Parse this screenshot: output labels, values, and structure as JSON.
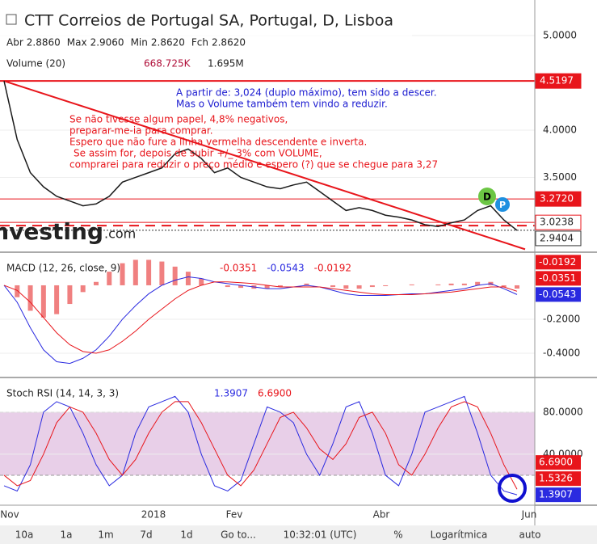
{
  "header": {
    "title": "CTT Correios de Portugal SA, Portugal, D, Lisboa",
    "ohlc": [
      "Abr",
      "2.8860",
      "Max",
      "2.9060",
      "Min",
      "2.8620",
      "Fch",
      "2.8620"
    ],
    "volume_label": "Volume (20)",
    "volume_values": [
      "668.725K",
      "1.695M"
    ]
  },
  "annotations": {
    "blue": [
      "A partir de: 3,024 (duplo máximo), tem sido a descer.",
      "Mas o Volume também tem vindo a reduzir."
    ],
    "red": [
      "Se não tivesse algum papel, 4,8% negativos,",
      "preparar-me-ia para comprar.",
      "Espero que não fure a linha vermelha descendente e inverta.",
      "Se assim for, depois de subir +/_ 3% com VOLUME,",
      "comprarei para reduzir o preço médio e espero (?) que se chegue para 3,27"
    ],
    "watermark": "Investing",
    "watermark_suffix": ".com",
    "badge_d": "D",
    "badge_p": "P"
  },
  "x_axis": [
    "Nov",
    "2018",
    "Fev",
    "Abr",
    "Jun"
  ],
  "toolbar": [
    "10a",
    "1a",
    "1m",
    "7d",
    "1d",
    "Go to...",
    "10:32:01 (UTC)",
    "%",
    "Logarítmica",
    "auto"
  ],
  "chart_data": [
    {
      "type": "line",
      "color": "#1a1a1a",
      "ylim": [
        2.709,
        5.376
      ],
      "yticks": [
        {
          "value": 5,
          "label": "5.0000"
        },
        {
          "value": 4,
          "label": "4.0000"
        },
        {
          "value": 3.5,
          "label": "3.5000"
        }
      ],
      "values": [
        4.52,
        3.9,
        3.55,
        3.4,
        3.3,
        3.25,
        3.2,
        3.22,
        3.3,
        3.45,
        3.5,
        3.55,
        3.6,
        3.75,
        3.8,
        3.7,
        3.55,
        3.6,
        3.5,
        3.45,
        3.4,
        3.38,
        3.42,
        3.45,
        3.35,
        3.25,
        3.15,
        3.18,
        3.15,
        3.1,
        3.08,
        3.05,
        3.0,
        2.98,
        3.02,
        3.05,
        3.15,
        3.2,
        3.05,
        2.94
      ],
      "trendline": [
        4.52,
        2.74
      ],
      "dashed_line": 2.99,
      "price_lines": [
        {
          "value": 4.5197,
          "label": "4.5197",
          "color": "#e8151b"
        },
        {
          "value": 3.272,
          "label": "3.2720",
          "color": "#e8151b"
        },
        {
          "value": 3.0238,
          "label": "3.0238",
          "color": "#e8151b"
        },
        {
          "value": 2.9404,
          "label": "2.9404",
          "color": "#333333"
        }
      ]
    },
    {
      "type": "macd",
      "title": "MACD (12, 26, close, 9)",
      "readouts": [
        "-0.0351",
        "-0.0543",
        "-0.0192"
      ],
      "ylim": [
        -0.543,
        0.195
      ],
      "yticks": [
        {
          "value": -0.2,
          "label": "-0.2000"
        },
        {
          "value": -0.4,
          "label": "-0.4000"
        }
      ],
      "series": [
        {
          "color": "#2a2ae0",
          "values": [
            0,
            -0.1,
            -0.25,
            -0.38,
            -0.45,
            -0.46,
            -0.43,
            -0.38,
            -0.3,
            -0.2,
            -0.12,
            -0.05,
            0,
            0.03,
            0.05,
            0.04,
            0.02,
            0.01,
            0,
            -0.01,
            -0.02,
            -0.02,
            -0.01,
            0,
            -0.01,
            -0.03,
            -0.05,
            -0.06,
            -0.06,
            -0.06,
            -0.055,
            -0.05,
            -0.05,
            -0.04,
            -0.03,
            -0.02,
            0,
            0.01,
            -0.02,
            -0.0543
          ]
        },
        {
          "color": "#e8151b",
          "values": [
            0,
            -0.03,
            -0.1,
            -0.19,
            -0.28,
            -0.35,
            -0.39,
            -0.4,
            -0.38,
            -0.33,
            -0.27,
            -0.2,
            -0.14,
            -0.08,
            -0.03,
            0,
            0.02,
            0.02,
            0.015,
            0.01,
            0,
            -0.01,
            -0.01,
            -0.01,
            -0.01,
            -0.02,
            -0.03,
            -0.04,
            -0.05,
            -0.055,
            -0.055,
            -0.055,
            -0.05,
            -0.045,
            -0.04,
            -0.03,
            -0.02,
            -0.01,
            -0.01,
            -0.0351
          ]
        }
      ],
      "histogram": {
        "color": "#f08080",
        "values": [
          0,
          -0.07,
          -0.15,
          -0.19,
          -0.17,
          -0.11,
          -0.04,
          0.02,
          0.08,
          0.13,
          0.15,
          0.15,
          0.14,
          0.11,
          0.08,
          0.04,
          0,
          -0.01,
          -0.015,
          -0.02,
          -0.02,
          -0.01,
          0,
          0.01,
          0,
          -0.01,
          -0.02,
          -0.02,
          -0.01,
          -0.005,
          0,
          0.005,
          0,
          0.005,
          0.01,
          0.01,
          0.02,
          0.02,
          -0.01,
          -0.0192
        ]
      },
      "last_labels": [
        {
          "value": -0.0192,
          "label": "-0.0192",
          "color": "#e8151b"
        },
        {
          "value": -0.0351,
          "label": "-0.0351",
          "color": "#e8151b"
        },
        {
          "value": -0.0543,
          "label": "-0.0543",
          "color": "#2a2ae0"
        }
      ]
    },
    {
      "type": "stoch",
      "title": "Stoch RSI (14, 14, 3, 3)",
      "readouts": [
        "1.3907",
        "6.6900"
      ],
      "ylim": [
        -8.5,
        113
      ],
      "yticks": [
        {
          "value": 80,
          "label": "80.0000"
        },
        {
          "value": 40,
          "label": "40.0000"
        }
      ],
      "band": [
        20,
        80
      ],
      "series": [
        {
          "color": "#2a2ae0",
          "values": [
            10,
            5,
            30,
            80,
            90,
            85,
            60,
            30,
            10,
            20,
            60,
            85,
            90,
            95,
            80,
            40,
            10,
            5,
            15,
            50,
            85,
            80,
            70,
            40,
            20,
            50,
            85,
            90,
            60,
            20,
            10,
            40,
            80,
            85,
            90,
            95,
            60,
            20,
            5,
            1.3907
          ]
        },
        {
          "color": "#e8151b",
          "values": [
            20,
            10,
            15,
            40,
            70,
            85,
            80,
            60,
            35,
            20,
            35,
            60,
            80,
            90,
            90,
            70,
            45,
            20,
            10,
            25,
            50,
            75,
            80,
            65,
            45,
            35,
            50,
            75,
            80,
            60,
            30,
            20,
            40,
            65,
            85,
            90,
            85,
            60,
            30,
            6.69
          ]
        }
      ],
      "last_labels": [
        {
          "value": 6.69,
          "label": "6.6900",
          "color": "#e8151b"
        },
        {
          "value": 1.5326,
          "label": "1.5326",
          "color": "#e8151b"
        },
        {
          "value": 1.3907,
          "label": "1.3907",
          "color": "#2a2ae0"
        }
      ]
    }
  ]
}
